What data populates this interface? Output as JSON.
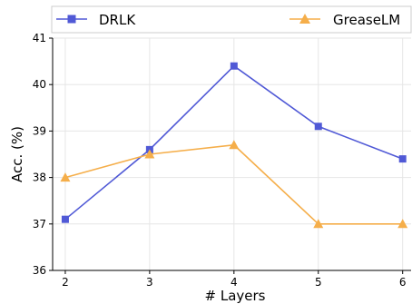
{
  "chart_data": {
    "type": "line",
    "x": [
      2,
      3,
      4,
      5,
      6
    ],
    "xlabel": "# Layers",
    "ylabel": "Acc. (%)",
    "xlim": [
      1.85,
      6.1
    ],
    "ylim": [
      36,
      41
    ],
    "xticks": [
      "2",
      "3",
      "4",
      "5",
      "6"
    ],
    "yticks": [
      "36",
      "37",
      "38",
      "39",
      "40",
      "41"
    ],
    "grid": true,
    "legend_position": "top, spanning full width",
    "series": [
      {
        "name": "DRLK",
        "values": [
          37.1,
          38.6,
          40.4,
          39.1,
          38.4
        ],
        "color": "#5059d6",
        "marker": "square"
      },
      {
        "name": "GreaseLM",
        "values": [
          38.0,
          38.5,
          38.7,
          37.0,
          37.0
        ],
        "color": "#f5ae4a",
        "marker": "triangle"
      }
    ]
  }
}
